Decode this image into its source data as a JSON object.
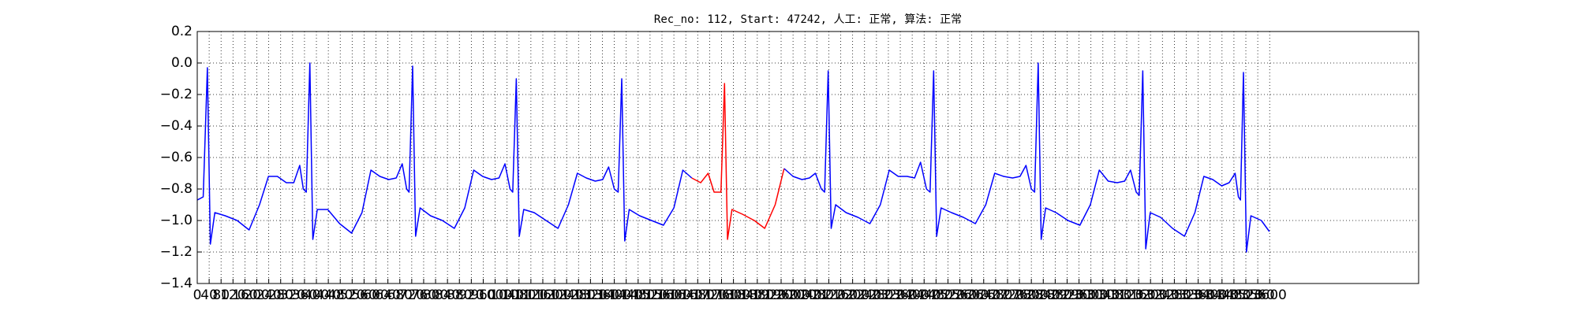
{
  "chart_data": {
    "type": "line",
    "title": "Rec_no: 112, Start: 47242, 人工: 正常, 算法: 正常",
    "xlim": [
      0,
      4100
    ],
    "ylim": [
      -1.4,
      0.2
    ],
    "xticks": [
      0,
      40,
      80,
      120,
      160,
      200,
      240,
      280,
      320,
      360,
      400,
      440,
      480,
      520,
      560,
      600,
      640,
      680,
      720,
      760,
      800,
      840,
      880,
      920,
      960,
      1000,
      1040,
      1080,
      1120,
      1160,
      1200,
      1240,
      1280,
      1320,
      1360,
      1400,
      1440,
      1480,
      1520,
      1560,
      1600,
      1640,
      1680,
      1720,
      1760,
      1800,
      1840,
      1880,
      1920,
      1960,
      2000,
      2040,
      2080,
      2120,
      2160,
      2200,
      2240,
      2280,
      2320,
      2360,
      2400,
      2440,
      2480,
      2520,
      2560,
      2600,
      2640,
      2680,
      2720,
      2760,
      2800,
      2840,
      2880,
      2920,
      2960,
      3000,
      3040,
      3080,
      3120,
      3160,
      3200,
      3240,
      3280,
      3320,
      3360,
      3400,
      3440,
      3480,
      3520,
      3560,
      3600
    ],
    "yticks": [
      0.2,
      {
        "value": 0,
        "label": "0.0"
      },
      {
        "value": -0.2,
        "label": "−0.2"
      },
      {
        "value": -0.4,
        "label": "−0.4"
      },
      {
        "value": -0.6,
        "label": "−0.6"
      },
      {
        "value": -0.8,
        "label": "−0.8"
      },
      {
        "value": -1.0,
        "label": "−1.0"
      },
      {
        "value": -1.2,
        "label": "−1.2"
      },
      {
        "value": -1.4,
        "label": "−1.4"
      }
    ],
    "grid": true,
    "series": [
      {
        "color": "#0000ff",
        "x": [
          0,
          20,
          34,
          44,
          59,
          94,
          134,
          174,
          209,
          239,
          269,
          299,
          324,
          344,
          356,
          366,
          378,
          388,
          403,
          438,
          478,
          518,
          553,
          583,
          613,
          643,
          668,
          688,
          703,
          711,
          723,
          733,
          748,
          783,
          823,
          863,
          898,
          928,
          958,
          988,
          1013,
          1033,
          1050,
          1059,
          1071,
          1081,
          1096,
          1131,
          1171,
          1211,
          1246,
          1276,
          1306,
          1336,
          1361,
          1381,
          1400,
          1413,
          1425,
          1435,
          1450,
          1485,
          1525,
          1565,
          1600,
          1630,
          1660
        ],
        "values": [
          -0.87,
          -0.85,
          -0.03,
          -1.15,
          -0.95,
          -0.97,
          -1.0,
          -1.06,
          -0.9,
          -0.72,
          -0.72,
          -0.76,
          -0.76,
          -0.65,
          -0.8,
          -0.82,
          0.0,
          -1.12,
          -0.93,
          -0.93,
          -1.02,
          -1.08,
          -0.95,
          -0.68,
          -0.72,
          -0.74,
          -0.73,
          -0.64,
          -0.8,
          -0.82,
          -0.02,
          -1.1,
          -0.92,
          -0.97,
          -1.0,
          -1.05,
          -0.92,
          -0.68,
          -0.72,
          -0.74,
          -0.73,
          -0.64,
          -0.8,
          -0.82,
          -0.1,
          -1.1,
          -0.93,
          -0.95,
          -1.0,
          -1.05,
          -0.9,
          -0.7,
          -0.73,
          -0.75,
          -0.74,
          -0.66,
          -0.8,
          -0.82,
          -0.1,
          -1.13,
          -0.93,
          -0.97,
          -1.0,
          -1.03,
          -0.92,
          -0.68,
          -0.73
        ]
      },
      {
        "color": "#ff0000",
        "x": [
          1660,
          1690,
          1715,
          1735,
          1758,
          1770,
          1780,
          1795,
          1830,
          1870,
          1905,
          1940,
          1970
        ],
        "values": [
          -0.73,
          -0.76,
          -0.7,
          -0.82,
          -0.82,
          -0.13,
          -1.12,
          -0.93,
          -0.96,
          -1.0,
          -1.05,
          -0.9,
          -0.67
        ]
      },
      {
        "color": "#0000ff",
        "x": [
          1970,
          2000,
          2030,
          2055,
          2075,
          2095,
          2106,
          2118,
          2128,
          2143,
          2178,
          2218,
          2258,
          2293,
          2323,
          2353,
          2383,
          2408,
          2428,
          2448,
          2460,
          2472,
          2482,
          2497,
          2532,
          2572,
          2612,
          2647,
          2677,
          2707,
          2737,
          2762,
          2782,
          2800,
          2811,
          2823,
          2833,
          2848,
          2883,
          2923,
          2963,
          2998,
          3028,
          3058,
          3088,
          3113,
          3133,
          3152,
          3162,
          3174,
          3184,
          3199,
          3234,
          3274,
          3314,
          3349,
          3379,
          3409,
          3439,
          3464,
          3484,
          3495,
          3502,
          3512,
          3522,
          3537,
          3572,
          3599
        ],
        "values": [
          -0.67,
          -0.72,
          -0.74,
          -0.73,
          -0.7,
          -0.8,
          -0.82,
          -0.05,
          -1.05,
          -0.9,
          -0.95,
          -0.98,
          -1.02,
          -0.9,
          -0.68,
          -0.72,
          -0.72,
          -0.73,
          -0.63,
          -0.8,
          -0.82,
          -0.05,
          -1.1,
          -0.92,
          -0.95,
          -0.98,
          -1.02,
          -0.9,
          -0.7,
          -0.72,
          -0.73,
          -0.72,
          -0.65,
          -0.8,
          -0.82,
          0.0,
          -1.12,
          -0.92,
          -0.95,
          -1.0,
          -1.03,
          -0.9,
          -0.68,
          -0.75,
          -0.76,
          -0.75,
          -0.68,
          -0.82,
          -0.84,
          -0.05,
          -1.18,
          -0.95,
          -0.98,
          -1.05,
          -1.1,
          -0.95,
          -0.72,
          -0.74,
          -0.78,
          -0.76,
          -0.7,
          -0.85,
          -0.87,
          -0.06,
          -1.2,
          -0.97,
          -1.0,
          -1.07
        ]
      }
    ]
  }
}
